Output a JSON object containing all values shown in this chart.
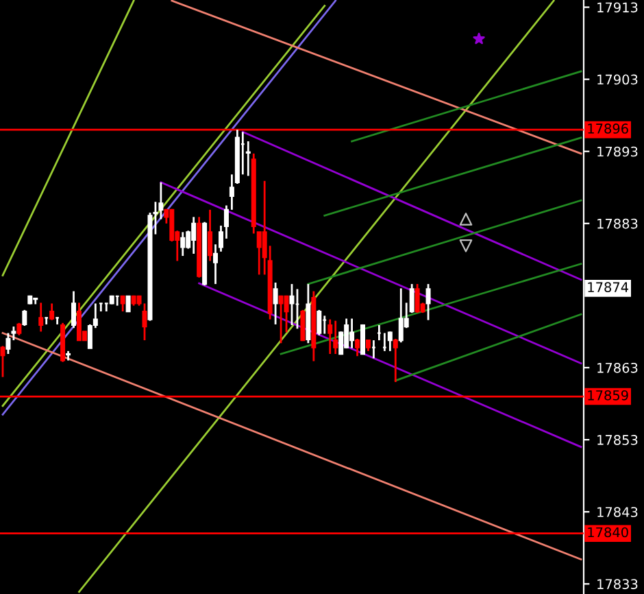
{
  "chart_data": {
    "type": "candlestick",
    "categories": [
      null,
      null,
      null,
      null,
      null,
      null,
      null,
      null,
      null,
      null,
      null,
      null,
      null,
      null,
      null,
      null,
      null,
      null,
      null,
      null,
      null,
      null,
      null,
      null,
      null,
      null,
      null,
      null,
      null,
      null,
      null,
      null,
      null,
      null,
      null,
      null,
      null,
      null,
      null,
      null,
      null,
      null,
      null,
      null,
      null,
      null,
      null,
      null,
      null,
      null,
      null,
      null,
      null,
      null,
      null,
      null,
      null,
      null,
      null,
      null,
      null,
      null,
      null,
      null,
      null,
      null,
      null,
      null,
      null,
      null,
      null,
      null,
      null,
      null,
      null,
      null,
      null,
      null,
      null,
      null,
      null,
      null,
      null,
      null,
      null,
      null,
      null,
      null,
      null,
      null,
      null,
      null,
      null,
      null,
      null,
      null,
      null,
      null,
      null,
      null,
      null,
      null,
      null,
      null,
      null,
      null,
      null
    ],
    "ohlc": [
      [
        17865.8,
        17866,
        17861.7,
        17864.7
      ],
      [
        17865.6,
        17867.8,
        17864.9,
        17867
      ],
      [
        17867.8,
        17868.7,
        17866.8,
        17868
      ],
      [
        17869,
        17869.2,
        17867.5,
        17867.8
      ],
      [
        17869,
        17871,
        17868.8,
        17870.8
      ],
      [
        17871.9,
        17873,
        17871.8,
        17872.9
      ],
      [
        17872.5,
        17872.6,
        17871.8,
        17872.6
      ],
      [
        17869.9,
        17872,
        17868,
        17868.9
      ],
      [
        17869.9,
        17870,
        17869,
        17869.9
      ],
      [
        17870.8,
        17871.9,
        17869.6,
        17869.8
      ],
      [
        17869.9,
        17870,
        17869,
        17869.9
      ],
      [
        17868.9,
        17869.2,
        17863.8,
        17864
      ],
      [
        17864.8,
        17865.3,
        17864,
        17864.9
      ],
      [
        17868.9,
        17873.6,
        17868.5,
        17871.9
      ],
      [
        17870.8,
        17872,
        17866.8,
        17866.8
      ],
      [
        17868,
        17868,
        17866.8,
        17866.8
      ],
      [
        17865.7,
        17869,
        17865.7,
        17868.8
      ],
      [
        17868.9,
        17871.9,
        17868.5,
        17869.7
      ],
      [
        17871.9,
        17871.9,
        17870.8,
        17871.9
      ],
      [
        17871.9,
        17871.9,
        17870.8,
        17871.9
      ],
      [
        17871.9,
        17873,
        17871.8,
        17872.9
      ],
      [
        17872.9,
        17872.9,
        17871.6,
        17872.9
      ],
      [
        17872.9,
        17873,
        17870.8,
        17871.9
      ],
      [
        17870.8,
        17872.9,
        17870.8,
        17872.9
      ],
      [
        17872.9,
        17873,
        17871.6,
        17871.9
      ],
      [
        17872.9,
        17873,
        17871.6,
        17871.9
      ],
      [
        17870.8,
        17871.9,
        17866.8,
        17868.7
      ],
      [
        17869.7,
        17884.5,
        17869.5,
        17884.1
      ],
      [
        17884.4,
        17886,
        17881.5,
        17884.5
      ],
      [
        17884.9,
        17888.7,
        17883.6,
        17885.8
      ],
      [
        17884.9,
        17885,
        17883,
        17883.9
      ],
      [
        17884.9,
        17885,
        17880.5,
        17880.7
      ],
      [
        17881.8,
        17882,
        17877.8,
        17880.7
      ],
      [
        17879.7,
        17881.8,
        17878.5,
        17881
      ],
      [
        17879.7,
        17882,
        17879.5,
        17881.8
      ],
      [
        17880.7,
        17883.9,
        17878.8,
        17883
      ],
      [
        17883,
        17883.9,
        17875.5,
        17875.7
      ],
      [
        17874.6,
        17883.2,
        17874.4,
        17883
      ],
      [
        17881.8,
        17884.9,
        17877.8,
        17878.6
      ],
      [
        17877.6,
        17880.1,
        17874.6,
        17878.8
      ],
      [
        17879.7,
        17882.7,
        17879.1,
        17881.8
      ],
      [
        17882.6,
        17885.5,
        17880.9,
        17884.9
      ],
      [
        17886.8,
        17889.8,
        17884.9,
        17888
      ],
      [
        17888.7,
        17896,
        17888.5,
        17894.9
      ],
      [
        17894,
        17895.7,
        17889.8,
        17894
      ],
      [
        17892.8,
        17894.4,
        17889.6,
        17892.9
      ],
      [
        17891.9,
        17892.7,
        17881.6,
        17882.6
      ],
      [
        17881.8,
        17881.8,
        17875.9,
        17879.7
      ],
      [
        17881.8,
        17888.9,
        17875.9,
        17878.3
      ],
      [
        17877.8,
        17879.9,
        17869.7,
        17870.6
      ],
      [
        17871.9,
        17874.8,
        17869,
        17873.9
      ],
      [
        17872.9,
        17873,
        17866.4,
        17871.9
      ],
      [
        17872.9,
        17873,
        17867.9,
        17870.8
      ],
      [
        17871.9,
        17874.6,
        17868.9,
        17872.9
      ],
      [
        17871.8,
        17873.9,
        17868.4,
        17871.8
      ],
      [
        17870.8,
        17871,
        17866.7,
        17866.8
      ],
      [
        17866.9,
        17874.6,
        17866.4,
        17871.8
      ],
      [
        17872.7,
        17873.6,
        17863.9,
        17865.8
      ],
      [
        17867.8,
        17871,
        17867.5,
        17870.8
      ],
      [
        17869.6,
        17870.2,
        17867.7,
        17869.6
      ],
      [
        17868.9,
        17869.7,
        17864.9,
        17867.8
      ],
      [
        17866.8,
        17869.5,
        17864.9,
        17865.8
      ],
      [
        17864.9,
        17868,
        17864.8,
        17867.9
      ],
      [
        17865.8,
        17869.8,
        17865.7,
        17868.9
      ],
      [
        17866.8,
        17869.8,
        17865.7,
        17867.9
      ],
      [
        17866.8,
        17867,
        17864.6,
        17865.8
      ],
      [
        17864.9,
        17869,
        17864.8,
        17868.9
      ],
      [
        17866.8,
        17866.8,
        17865.3,
        17865.8
      ],
      [
        17865.8,
        17866.8,
        17864.3,
        17865.8
      ],
      [
        17867.8,
        17868.9,
        17866.8,
        17867.8
      ],
      [
        17865.8,
        17867.8,
        17865.3,
        17865.8
      ],
      [
        17866.8,
        17868,
        17865.3,
        17867.9
      ],
      [
        17866.8,
        17867,
        17861,
        17865.8
      ],
      [
        17866.8,
        17874,
        17866.5,
        17869.8
      ],
      [
        17868.7,
        17872,
        17868.5,
        17869.8
      ],
      [
        17870.8,
        17874.6,
        17870.6,
        17873.9
      ],
      [
        17873.9,
        17874.6,
        17870.6,
        17870.8
      ],
      [
        17871.8,
        17872,
        17870.6,
        17870.8
      ],
      [
        17871.9,
        17874.6,
        17869.6,
        17873.9
      ],
      null,
      null,
      null,
      null,
      null,
      null,
      null,
      null,
      null,
      null,
      null,
      null,
      null,
      null,
      null,
      null,
      null,
      null,
      null,
      null,
      null,
      null,
      null,
      null,
      null,
      null,
      null,
      null
    ],
    "colors": [
      "#ff0000",
      "#ffffff",
      "#ffffff",
      "#ff0000",
      "#ffffff",
      "#ffffff",
      "#ffffff",
      "#ff0000",
      "#ffffff",
      "#ff0000",
      "#ffffff",
      "#ff0000",
      "#ffffff",
      "#ffffff",
      "#ff0000",
      "#ff0000",
      "#ffffff",
      "#ffffff",
      "#ffffff",
      "#ffffff",
      "#ffffff",
      "#ffffff",
      "#ff0000",
      "#ffffff",
      "#ff0000",
      "#ff0000",
      "#ff0000",
      "#ffffff",
      "#ffffff",
      "#ffffff",
      "#ff0000",
      "#ff0000",
      "#ff0000",
      "#ffffff",
      "#ffffff",
      "#ffffff",
      "#ff0000",
      "#ffffff",
      "#ff0000",
      "#ffffff",
      "#ffffff",
      "#ffffff",
      "#ffffff",
      "#ffffff",
      "#ffffff",
      "#ffffff",
      "#ff0000",
      "#ff0000",
      "#ff0000",
      "#ff0000",
      "#ffffff",
      "#ff0000",
      "#ff0000",
      "#ffffff",
      "#ffffff",
      "#ff0000",
      "#ffffff",
      "#ff0000",
      "#ffffff",
      "#ffffff",
      "#ff0000",
      "#ff0000",
      "#ffffff",
      "#ffffff",
      "#ffffff",
      "#ff0000",
      "#ffffff",
      "#ff0000",
      "#ffffff",
      "#ffffff",
      "#ffffff",
      "#ffffff",
      "#ff0000",
      "#ffffff",
      "#ffffff",
      "#ffffff",
      "#ff0000",
      "#ff0000",
      "#ffffff",
      null,
      null,
      null,
      null,
      null,
      null,
      null,
      null,
      null,
      null,
      null,
      null,
      null,
      null,
      null,
      null,
      null,
      null,
      null,
      null,
      null,
      null,
      null,
      null,
      null,
      null,
      null,
      null
    ],
    "series": [
      {
        "type": "line",
        "color": "#9acd32",
        "values": [
          17875.8,
          null,
          null,
          null,
          null,
          null,
          null,
          null,
          null,
          null,
          null,
          null,
          null,
          null,
          null,
          null,
          null,
          null,
          null,
          null,
          null,
          null,
          null,
          null,
          17913.9,
          null,
          null,
          null,
          null,
          null,
          null,
          null,
          null,
          null,
          null,
          null,
          null,
          null,
          null,
          null,
          null,
          null,
          null,
          null,
          null,
          null,
          null,
          null,
          null,
          null,
          null,
          null,
          null,
          null,
          null,
          null,
          null,
          null,
          null,
          null,
          null,
          null,
          null,
          null,
          null,
          null,
          null,
          null,
          null,
          null,
          null,
          null,
          null,
          null,
          null,
          null,
          null,
          null,
          null,
          null,
          null,
          null,
          null,
          null,
          null,
          null,
          null,
          null,
          null,
          null,
          null,
          null,
          null,
          null,
          null,
          null,
          null,
          null,
          null,
          null,
          null,
          null,
          null,
          null,
          null,
          null,
          null
        ]
      },
      {
        "type": "line",
        "color": "#9acd32",
        "values": [
          17857.7,
          null,
          null,
          null,
          null,
          null,
          null,
          null,
          null,
          null,
          null,
          null,
          null,
          null,
          null,
          null,
          null,
          null,
          null,
          null,
          null,
          null,
          null,
          null,
          null,
          null,
          null,
          null,
          null,
          null,
          null,
          null,
          null,
          null,
          null,
          null,
          null,
          null,
          null,
          null,
          null,
          null,
          null,
          null,
          null,
          null,
          null,
          null,
          null,
          null,
          null,
          null,
          null,
          null,
          null,
          null,
          null,
          null,
          null,
          17913.2,
          null,
          null,
          null,
          null,
          null,
          null,
          null,
          null,
          null,
          null,
          null,
          null,
          null,
          null,
          null,
          null,
          null,
          null,
          null,
          null,
          null,
          null,
          null,
          null,
          null,
          null,
          null,
          null,
          null,
          null,
          null,
          null,
          null,
          null,
          null,
          null,
          null,
          null,
          null,
          null,
          null,
          null,
          null,
          null,
          null,
          null,
          null
        ]
      },
      {
        "type": "line",
        "color": "#7b68ee",
        "values": [
          17856.5,
          null,
          null,
          null,
          null,
          null,
          null,
          null,
          null,
          null,
          null,
          null,
          null,
          null,
          null,
          null,
          null,
          null,
          null,
          null,
          null,
          null,
          null,
          null,
          null,
          null,
          null,
          null,
          null,
          null,
          null,
          null,
          null,
          null,
          null,
          null,
          null,
          null,
          null,
          null,
          null,
          null,
          null,
          null,
          null,
          null,
          null,
          null,
          null,
          null,
          null,
          null,
          null,
          null,
          null,
          null,
          null,
          null,
          null,
          null,
          null,
          17913.9,
          null,
          null,
          null,
          null,
          null,
          null,
          null,
          null,
          null,
          null,
          null,
          null,
          null,
          null,
          null,
          null,
          null,
          null,
          null,
          null,
          null,
          null,
          null,
          null,
          null,
          null,
          null,
          null,
          null,
          null,
          null,
          null,
          null,
          null,
          null,
          null,
          null,
          null,
          null,
          null,
          null,
          null,
          null,
          null,
          null
        ]
      },
      {
        "type": "line",
        "color": "#9acd32",
        "values": [
          null,
          null,
          null,
          null,
          null,
          null,
          null,
          null,
          null,
          null,
          null,
          null,
          null,
          null,
          17831.9,
          null,
          null,
          null,
          null,
          null,
          null,
          null,
          null,
          null,
          null,
          null,
          null,
          null,
          null,
          null,
          null,
          null,
          null,
          null,
          null,
          null,
          null,
          null,
          null,
          null,
          null,
          null,
          null,
          null,
          null,
          null,
          null,
          null,
          null,
          null,
          null,
          null,
          null,
          null,
          null,
          null,
          null,
          null,
          null,
          null,
          null,
          null,
          null,
          null,
          null,
          null,
          null,
          null,
          null,
          null,
          null,
          null,
          null,
          null,
          null,
          null,
          null,
          null,
          null,
          null,
          null,
          null,
          null,
          null,
          null,
          null,
          null,
          null,
          null,
          null,
          null,
          null,
          null,
          null,
          null,
          null,
          null,
          null,
          null,
          null,
          null,
          17913.9,
          null,
          null,
          null,
          null,
          null
        ]
      },
      {
        "type": "line",
        "color": "#f08070",
        "values": [
          null,
          null,
          null,
          null,
          null,
          null,
          null,
          null,
          null,
          null,
          null,
          null,
          null,
          null,
          null,
          null,
          null,
          null,
          null,
          null,
          null,
          null,
          null,
          null,
          null,
          null,
          null,
          null,
          null,
          null,
          null,
          17913.9,
          null,
          null,
          null,
          null,
          null,
          null,
          null,
          null,
          null,
          null,
          null,
          null,
          null,
          null,
          null,
          null,
          null,
          null,
          null,
          null,
          null,
          null,
          null,
          null,
          null,
          null,
          null,
          null,
          null,
          null,
          null,
          null,
          null,
          null,
          null,
          null,
          null,
          null,
          null,
          null,
          null,
          null,
          null,
          null,
          null,
          null,
          null,
          null,
          null,
          null,
          null,
          null,
          null,
          null,
          null,
          null,
          null,
          null,
          null,
          null,
          null,
          null,
          null,
          null,
          null,
          null,
          null,
          null,
          null,
          null,
          null,
          null,
          null,
          null,
          17892.7
        ]
      },
      {
        "type": "line",
        "color": "#f08070",
        "values": [
          17867.8,
          null,
          null,
          null,
          null,
          null,
          null,
          null,
          null,
          null,
          null,
          null,
          null,
          null,
          null,
          null,
          null,
          null,
          null,
          null,
          null,
          null,
          null,
          null,
          null,
          null,
          null,
          null,
          null,
          null,
          null,
          null,
          null,
          null,
          null,
          null,
          null,
          null,
          null,
          null,
          null,
          null,
          null,
          null,
          null,
          null,
          null,
          null,
          null,
          null,
          null,
          null,
          null,
          null,
          null,
          null,
          null,
          null,
          null,
          null,
          null,
          null,
          null,
          null,
          null,
          null,
          null,
          null,
          null,
          null,
          null,
          null,
          null,
          null,
          null,
          null,
          null,
          null,
          null,
          null,
          null,
          null,
          null,
          null,
          null,
          null,
          null,
          null,
          null,
          null,
          null,
          null,
          null,
          null,
          null,
          null,
          null,
          null,
          null,
          null,
          null,
          null,
          null,
          null,
          null,
          null,
          17836.4
        ]
      },
      {
        "type": "line",
        "color": "#9400d3",
        "values": [
          null,
          null,
          null,
          null,
          null,
          null,
          null,
          null,
          null,
          null,
          null,
          null,
          null,
          null,
          null,
          null,
          null,
          null,
          null,
          null,
          null,
          null,
          null,
          null,
          null,
          null,
          null,
          null,
          null,
          null,
          null,
          null,
          null,
          null,
          null,
          null,
          null,
          null,
          null,
          null,
          null,
          null,
          null,
          null,
          17895.7,
          null,
          null,
          null,
          null,
          null,
          null,
          null,
          null,
          null,
          null,
          null,
          null,
          null,
          null,
          null,
          null,
          null,
          null,
          null,
          null,
          null,
          null,
          null,
          null,
          null,
          null,
          null,
          null,
          null,
          null,
          null,
          null,
          null,
          null,
          null,
          null,
          null,
          null,
          null,
          null,
          null,
          null,
          null,
          null,
          null,
          null,
          null,
          null,
          null,
          null,
          null,
          null,
          null,
          null,
          null,
          null,
          null,
          null,
          null,
          null,
          null,
          17875.2
        ]
      },
      {
        "type": "line",
        "color": "#9400d3",
        "values": [
          null,
          null,
          null,
          null,
          null,
          null,
          null,
          null,
          null,
          null,
          null,
          null,
          null,
          null,
          null,
          null,
          null,
          null,
          null,
          null,
          null,
          null,
          null,
          null,
          null,
          null,
          null,
          null,
          null,
          17888.7,
          null,
          null,
          null,
          null,
          null,
          null,
          null,
          null,
          null,
          null,
          null,
          null,
          null,
          null,
          null,
          null,
          null,
          null,
          null,
          null,
          null,
          null,
          null,
          null,
          null,
          null,
          null,
          null,
          null,
          null,
          null,
          null,
          null,
          null,
          null,
          null,
          null,
          null,
          null,
          null,
          null,
          null,
          null,
          null,
          null,
          null,
          null,
          null,
          null,
          null,
          null,
          null,
          null,
          null,
          null,
          null,
          null,
          null,
          null,
          null,
          null,
          null,
          null,
          null,
          null,
          null,
          null,
          null,
          null,
          null,
          null,
          null,
          null,
          null,
          null,
          null,
          17863.6
        ]
      },
      {
        "type": "line",
        "color": "#9400d3",
        "values": [
          null,
          null,
          null,
          null,
          null,
          null,
          null,
          null,
          null,
          null,
          null,
          null,
          null,
          null,
          null,
          null,
          null,
          null,
          null,
          null,
          null,
          null,
          null,
          null,
          null,
          null,
          null,
          null,
          null,
          null,
          null,
          null,
          null,
          null,
          null,
          null,
          17874.7,
          null,
          null,
          null,
          null,
          null,
          null,
          null,
          null,
          null,
          null,
          null,
          null,
          null,
          null,
          null,
          null,
          null,
          null,
          null,
          null,
          null,
          null,
          null,
          null,
          null,
          null,
          null,
          null,
          null,
          null,
          null,
          null,
          null,
          null,
          null,
          null,
          null,
          null,
          null,
          null,
          null,
          null,
          null,
          null,
          null,
          null,
          null,
          null,
          null,
          null,
          null,
          null,
          null,
          null,
          null,
          null,
          null,
          null,
          null,
          null,
          null,
          null,
          null,
          null,
          null,
          null,
          null,
          null,
          null,
          17852.0
        ]
      },
      {
        "type": "line",
        "color": "#228b22",
        "values": [
          null,
          null,
          null,
          null,
          null,
          null,
          null,
          null,
          null,
          null,
          null,
          null,
          null,
          null,
          null,
          null,
          null,
          null,
          null,
          null,
          null,
          null,
          null,
          null,
          null,
          null,
          null,
          null,
          null,
          null,
          null,
          null,
          null,
          null,
          null,
          null,
          null,
          null,
          null,
          null,
          null,
          null,
          null,
          null,
          null,
          null,
          null,
          null,
          null,
          null,
          null,
          null,
          null,
          null,
          null,
          null,
          null,
          null,
          null,
          null,
          null,
          null,
          null,
          null,
          17894.4,
          null,
          null,
          null,
          null,
          null,
          null,
          null,
          null,
          null,
          null,
          null,
          null,
          null,
          null,
          null,
          null,
          null,
          null,
          null,
          null,
          null,
          null,
          null,
          null,
          null,
          null,
          null,
          null,
          null,
          null,
          null,
          null,
          null,
          null,
          null,
          null,
          null,
          null,
          null,
          null,
          null,
          17904.1
        ]
      },
      {
        "type": "line",
        "color": "#228b22",
        "values": [
          null,
          null,
          null,
          null,
          null,
          null,
          null,
          null,
          null,
          null,
          null,
          null,
          null,
          null,
          null,
          null,
          null,
          null,
          null,
          null,
          null,
          null,
          null,
          null,
          null,
          null,
          null,
          null,
          null,
          null,
          null,
          null,
          null,
          null,
          null,
          null,
          null,
          null,
          null,
          null,
          null,
          null,
          null,
          null,
          null,
          null,
          null,
          null,
          null,
          null,
          null,
          null,
          null,
          null,
          null,
          null,
          null,
          null,
          null,
          17884.1,
          null,
          null,
          null,
          null,
          null,
          null,
          null,
          null,
          null,
          null,
          null,
          null,
          null,
          null,
          null,
          null,
          null,
          null,
          null,
          null,
          null,
          null,
          null,
          null,
          null,
          null,
          null,
          null,
          null,
          null,
          null,
          null,
          null,
          null,
          null,
          null,
          null,
          null,
          null,
          null,
          null,
          null,
          null,
          null,
          null,
          null,
          17894.9
        ]
      },
      {
        "type": "line",
        "color": "#228b22",
        "values": [
          null,
          null,
          null,
          null,
          null,
          null,
          null,
          null,
          null,
          null,
          null,
          null,
          null,
          null,
          null,
          null,
          null,
          null,
          null,
          null,
          null,
          null,
          null,
          null,
          null,
          null,
          null,
          null,
          null,
          null,
          null,
          null,
          null,
          null,
          null,
          null,
          null,
          null,
          null,
          null,
          null,
          null,
          null,
          null,
          null,
          null,
          null,
          null,
          null,
          null,
          null,
          null,
          null,
          null,
          null,
          null,
          17874.6,
          null,
          null,
          null,
          null,
          null,
          null,
          null,
          null,
          null,
          null,
          null,
          null,
          null,
          null,
          null,
          null,
          null,
          null,
          null,
          null,
          null,
          null,
          null,
          null,
          null,
          null,
          null,
          null,
          null,
          null,
          null,
          null,
          null,
          null,
          null,
          null,
          null,
          null,
          null,
          null,
          null,
          null,
          null,
          null,
          null,
          null,
          null,
          null,
          null,
          17886.2
        ]
      },
      {
        "type": "line",
        "color": "#228b22",
        "values": [
          null,
          null,
          null,
          null,
          null,
          null,
          null,
          null,
          null,
          null,
          null,
          null,
          null,
          null,
          null,
          null,
          null,
          null,
          null,
          null,
          null,
          null,
          null,
          null,
          null,
          null,
          null,
          null,
          null,
          null,
          null,
          null,
          null,
          null,
          null,
          null,
          null,
          null,
          null,
          null,
          null,
          null,
          null,
          null,
          null,
          null,
          null,
          null,
          null,
          null,
          null,
          17864.9,
          null,
          null,
          null,
          null,
          null,
          null,
          null,
          null,
          null,
          null,
          null,
          null,
          null,
          null,
          null,
          null,
          null,
          null,
          null,
          null,
          null,
          null,
          null,
          null,
          null,
          null,
          null,
          null,
          null,
          null,
          null,
          null,
          null,
          null,
          null,
          null,
          null,
          null,
          null,
          null,
          null,
          null,
          null,
          null,
          null,
          null,
          null,
          null,
          null,
          null,
          null,
          null,
          null,
          null,
          17877.4
        ]
      },
      {
        "type": "line",
        "color": "#228b22",
        "values": [
          null,
          null,
          null,
          null,
          null,
          null,
          null,
          null,
          null,
          null,
          null,
          null,
          null,
          null,
          null,
          null,
          null,
          null,
          null,
          null,
          null,
          null,
          null,
          null,
          null,
          null,
          null,
          null,
          null,
          null,
          null,
          null,
          null,
          null,
          null,
          null,
          null,
          null,
          null,
          null,
          null,
          null,
          null,
          null,
          null,
          null,
          null,
          null,
          null,
          null,
          null,
          null,
          null,
          null,
          null,
          null,
          null,
          null,
          null,
          null,
          null,
          null,
          null,
          null,
          null,
          null,
          null,
          null,
          null,
          null,
          null,
          null,
          17861.2,
          null,
          null,
          null,
          null,
          null,
          null,
          null,
          null,
          null,
          null,
          null,
          null,
          null,
          null,
          null,
          null,
          null,
          null,
          null,
          null,
          null,
          null,
          null,
          null,
          null,
          null,
          null,
          null,
          null,
          null,
          null,
          null,
          null,
          17870.4
        ]
      }
    ],
    "ref_lines": [
      {
        "axis": "y",
        "value": 17896,
        "label": "17896",
        "color": "#ff0000"
      },
      {
        "axis": "y",
        "value": 17859,
        "label": "17859",
        "color": "#ff0000"
      },
      {
        "axis": "y",
        "value": 17840,
        "label": "17840",
        "color": "#ff0000"
      }
    ],
    "annotations": [
      {
        "text": "17874",
        "y": 17874
      }
    ],
    "ylim": [
      17831.6,
      17914
    ],
    "yticks": [
      17913,
      17903,
      17893,
      17883,
      17863,
      17853,
      17843,
      17833
    ],
    "tick_labels": "y",
    "grid": false
  }
}
